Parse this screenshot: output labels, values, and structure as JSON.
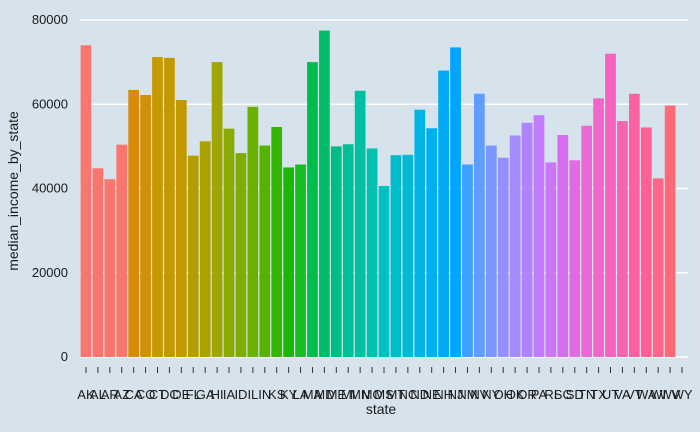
{
  "chart_data": {
    "type": "bar",
    "xlabel": "state",
    "ylabel": "median_income_by_state",
    "ylim": [
      0,
      80000
    ],
    "yticks": [
      0,
      20000,
      40000,
      60000,
      80000
    ],
    "grid": true,
    "legend": "none",
    "categories": [
      "AK",
      "AL",
      "AR",
      "AZ",
      "CA",
      "CO",
      "CT",
      "DC",
      "DE",
      "FL",
      "GA",
      "HI",
      "IA",
      "ID",
      "IL",
      "IN",
      "KS",
      "KY",
      "LA",
      "MA",
      "MD",
      "ME",
      "MI",
      "MN",
      "MO",
      "MS",
      "MT",
      "NC",
      "ND",
      "NE",
      "NH",
      "NJ",
      "NM",
      "NV",
      "NY",
      "OH",
      "OK",
      "OR",
      "PA",
      "RI",
      "SC",
      "SD",
      "TN",
      "TX",
      "UT",
      "VA",
      "VT",
      "WA",
      "WI",
      "WV",
      "WY"
    ],
    "values": [
      74000,
      44800,
      42200,
      50400,
      63400,
      62200,
      71200,
      71000,
      61000,
      47800,
      51200,
      70000,
      54200,
      48400,
      59400,
      50200,
      54600,
      45000,
      45700,
      70000,
      77500,
      50000,
      50500,
      63200,
      49500,
      40600,
      47900,
      48000,
      58700,
      54300,
      68000,
      73500,
      45700,
      62500,
      50200,
      47300,
      52600,
      55600,
      57400,
      46200,
      52700,
      46700,
      54900,
      61400,
      72000,
      56000,
      62500,
      54500,
      42400,
      59700,
      0
    ],
    "colors": [
      "#f8766d",
      "#f8766d",
      "#f8766d",
      "#f8766d",
      "#d88a08",
      "#d0900a",
      "#c69800",
      "#c29a00",
      "#c29a00",
      "#b59c00",
      "#a8a100",
      "#a0a500",
      "#8aaa00",
      "#7cad00",
      "#68b100",
      "#55b300",
      "#32b600",
      "#1ab900",
      "#1bbb24",
      "#00bc4b",
      "#00bd69",
      "#00bd84",
      "#00bf97",
      "#00c0a3",
      "#00c0b0",
      "#00bfc0",
      "#00bccb",
      "#00b9d7",
      "#00b5e4",
      "#00b0ee",
      "#00aaf5",
      "#00a5ff",
      "#3ca0ff",
      "#619cff",
      "#7b97ff",
      "#9590ff",
      "#a58afc",
      "#b283ff",
      "#c07bff",
      "#cb77f5",
      "#d56eed",
      "#e16be4",
      "#e96ad5",
      "#f066cc",
      "#f563be",
      "#f564b0",
      "#fb61a3",
      "#ff6195",
      "#ff6687",
      "#fd6b79",
      "#f8766d"
    ]
  }
}
